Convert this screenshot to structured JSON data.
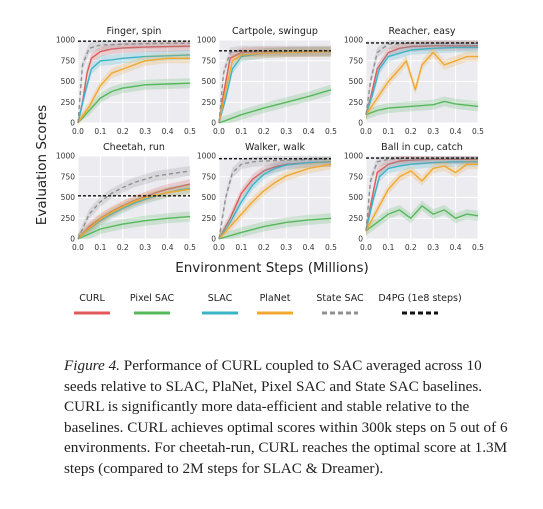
{
  "chart_data": [
    {
      "type": "line",
      "title": "Finger, spin",
      "x_ticks": [
        "0.0",
        "0.1",
        "0.2",
        "0.3",
        "0.4",
        "0.5"
      ],
      "y_ticks": [
        "0",
        "250",
        "500",
        "750",
        "1000"
      ],
      "xlim": [
        0,
        0.5
      ],
      "ylim": [
        0,
        1000
      ],
      "series": [
        {
          "name": "CURL",
          "color": "#e05a5a",
          "x": [
            0,
            0.02,
            0.04,
            0.06,
            0.1,
            0.15,
            0.2,
            0.3,
            0.4,
            0.5
          ],
          "y": [
            0,
            250,
            600,
            780,
            860,
            890,
            905,
            915,
            920,
            925
          ]
        },
        {
          "name": "Pixel SAC",
          "color": "#55b85a",
          "x": [
            0,
            0.05,
            0.1,
            0.15,
            0.2,
            0.3,
            0.4,
            0.5
          ],
          "y": [
            0,
            150,
            300,
            380,
            420,
            460,
            470,
            480
          ]
        },
        {
          "name": "SLAC",
          "color": "#3cb4c8",
          "x": [
            0,
            0.03,
            0.06,
            0.1,
            0.15,
            0.2,
            0.3,
            0.4,
            0.5
          ],
          "y": [
            0,
            350,
            650,
            750,
            760,
            780,
            800,
            810,
            820
          ]
        },
        {
          "name": "PlaNet",
          "color": "#f0a830",
          "x": [
            0,
            0.05,
            0.1,
            0.15,
            0.2,
            0.25,
            0.3,
            0.4,
            0.5
          ],
          "y": [
            0,
            200,
            450,
            600,
            650,
            700,
            750,
            780,
            780
          ]
        },
        {
          "name": "State SAC",
          "color": "#909090",
          "x": [
            0,
            0.02,
            0.05,
            0.1,
            0.2,
            0.3,
            0.4,
            0.5
          ],
          "y": [
            0,
            700,
            900,
            940,
            950,
            955,
            960,
            960
          ]
        },
        {
          "name": "D4PG (1e8 steps)",
          "color": "#111111",
          "x": [
            0,
            0.5
          ],
          "y": [
            985,
            985
          ]
        }
      ]
    },
    {
      "type": "line",
      "title": "Cartpole, swingup",
      "x_ticks": [
        "0.0",
        "0.1",
        "0.2",
        "0.3",
        "0.4",
        "0.5"
      ],
      "y_ticks": [
        "0",
        "250",
        "500",
        "750",
        "1000"
      ],
      "xlim": [
        0,
        0.5
      ],
      "ylim": [
        0,
        1000
      ],
      "series": [
        {
          "name": "CURL",
          "color": "#e05a5a",
          "x": [
            0,
            0.02,
            0.05,
            0.1,
            0.15,
            0.2,
            0.3,
            0.4,
            0.5
          ],
          "y": [
            0,
            350,
            780,
            850,
            855,
            860,
            860,
            860,
            860
          ]
        },
        {
          "name": "Pixel SAC",
          "color": "#55b85a",
          "x": [
            0,
            0.05,
            0.1,
            0.2,
            0.3,
            0.4,
            0.5
          ],
          "y": [
            0,
            50,
            100,
            180,
            250,
            320,
            400
          ]
        },
        {
          "name": "SLAC",
          "color": "#3cb4c8",
          "x": [
            0,
            0.03,
            0.06,
            0.1,
            0.2,
            0.3,
            0.4,
            0.5
          ],
          "y": [
            0,
            300,
            650,
            800,
            840,
            855,
            860,
            860
          ]
        },
        {
          "name": "PlaNet",
          "color": "#f0a830",
          "x": [
            0,
            0.03,
            0.06,
            0.1,
            0.2,
            0.3,
            0.4,
            0.5
          ],
          "y": [
            0,
            400,
            750,
            820,
            840,
            850,
            855,
            860
          ]
        },
        {
          "name": "State SAC",
          "color": "#909090",
          "x": [
            0,
            0.02,
            0.05,
            0.1,
            0.2,
            0.3,
            0.4,
            0.5
          ],
          "y": [
            0,
            600,
            850,
            870,
            870,
            870,
            870,
            870
          ]
        },
        {
          "name": "D4PG (1e8 steps)",
          "color": "#111111",
          "x": [
            0,
            0.5
          ],
          "y": [
            870,
            870
          ]
        }
      ]
    },
    {
      "type": "line",
      "title": "Reacher, easy",
      "x_ticks": [
        "0.0",
        "0.1",
        "0.2",
        "0.3",
        "0.4",
        "0.5"
      ],
      "y_ticks": [
        "0",
        "250",
        "500",
        "750",
        "1000"
      ],
      "xlim": [
        0,
        0.5
      ],
      "ylim": [
        0,
        1000
      ],
      "series": [
        {
          "name": "CURL",
          "color": "#e05a5a",
          "x": [
            0,
            0.02,
            0.05,
            0.1,
            0.15,
            0.2,
            0.3,
            0.4,
            0.5
          ],
          "y": [
            100,
            300,
            650,
            850,
            900,
            920,
            930,
            930,
            930
          ]
        },
        {
          "name": "Pixel SAC",
          "color": "#55b85a",
          "x": [
            0,
            0.05,
            0.1,
            0.2,
            0.3,
            0.35,
            0.4,
            0.5
          ],
          "y": [
            100,
            150,
            180,
            200,
            220,
            260,
            230,
            200
          ]
        },
        {
          "name": "SLAC",
          "color": "#3cb4c8",
          "x": [
            0,
            0.03,
            0.06,
            0.1,
            0.2,
            0.3,
            0.4,
            0.5
          ],
          "y": [
            100,
            350,
            650,
            800,
            880,
            900,
            910,
            910
          ]
        },
        {
          "name": "PlaNet",
          "color": "#f0a830",
          "x": [
            0,
            0.05,
            0.1,
            0.15,
            0.18,
            0.22,
            0.25,
            0.3,
            0.35,
            0.4,
            0.45,
            0.5
          ],
          "y": [
            100,
            300,
            500,
            650,
            750,
            400,
            700,
            850,
            700,
            750,
            800,
            800
          ]
        },
        {
          "name": "State SAC",
          "color": "#909090",
          "x": [
            0,
            0.02,
            0.05,
            0.1,
            0.2,
            0.3,
            0.4,
            0.5
          ],
          "y": [
            100,
            500,
            850,
            950,
            960,
            960,
            960,
            960
          ]
        },
        {
          "name": "D4PG (1e8 steps)",
          "color": "#111111",
          "x": [
            0,
            0.5
          ],
          "y": [
            965,
            965
          ]
        }
      ]
    },
    {
      "type": "line",
      "title": "Cheetah, run",
      "x_ticks": [
        "0.0",
        "0.1",
        "0.2",
        "0.3",
        "0.4",
        "0.5"
      ],
      "y_ticks": [
        "0",
        "250",
        "500",
        "750",
        "1000"
      ],
      "xlim": [
        0,
        0.5
      ],
      "ylim": [
        0,
        1000
      ],
      "series": [
        {
          "name": "CURL",
          "color": "#e05a5a",
          "x": [
            0,
            0.05,
            0.1,
            0.15,
            0.2,
            0.25,
            0.3,
            0.35,
            0.4,
            0.45,
            0.5
          ],
          "y": [
            0,
            150,
            250,
            330,
            400,
            460,
            510,
            560,
            600,
            630,
            660
          ]
        },
        {
          "name": "Pixel SAC",
          "color": "#55b85a",
          "x": [
            0,
            0.05,
            0.1,
            0.2,
            0.3,
            0.4,
            0.5
          ],
          "y": [
            0,
            60,
            120,
            180,
            220,
            250,
            270
          ]
        },
        {
          "name": "SLAC",
          "color": "#3cb4c8",
          "x": [
            0,
            0.05,
            0.1,
            0.15,
            0.2,
            0.25,
            0.3,
            0.35,
            0.4,
            0.45,
            0.5
          ],
          "y": [
            0,
            120,
            220,
            300,
            370,
            430,
            480,
            520,
            560,
            590,
            610
          ]
        },
        {
          "name": "PlaNet",
          "color": "#f0a830",
          "x": [
            0,
            0.05,
            0.1,
            0.15,
            0.2,
            0.25,
            0.3,
            0.35,
            0.4,
            0.45,
            0.5
          ],
          "y": [
            0,
            130,
            240,
            320,
            390,
            450,
            500,
            530,
            560,
            580,
            600
          ]
        },
        {
          "name": "State SAC",
          "color": "#909090",
          "x": [
            0,
            0.05,
            0.1,
            0.15,
            0.2,
            0.25,
            0.3,
            0.35,
            0.4,
            0.45,
            0.5
          ],
          "y": [
            0,
            300,
            450,
            550,
            620,
            680,
            720,
            760,
            780,
            800,
            820
          ]
        },
        {
          "name": "D4PG (1e8 steps)",
          "color": "#111111",
          "x": [
            0,
            0.5
          ],
          "y": [
            520,
            520
          ]
        }
      ]
    },
    {
      "type": "line",
      "title": "Walker, walk",
      "x_ticks": [
        "0.0",
        "0.1",
        "0.2",
        "0.3",
        "0.4",
        "0.5"
      ],
      "y_ticks": [
        "0",
        "250",
        "500",
        "750",
        "1000"
      ],
      "xlim": [
        0,
        0.5
      ],
      "ylim": [
        0,
        1000
      ],
      "series": [
        {
          "name": "CURL",
          "color": "#e05a5a",
          "x": [
            0,
            0.05,
            0.1,
            0.15,
            0.2,
            0.25,
            0.3,
            0.4,
            0.5
          ],
          "y": [
            0,
            250,
            550,
            720,
            820,
            870,
            900,
            920,
            930
          ]
        },
        {
          "name": "Pixel SAC",
          "color": "#55b85a",
          "x": [
            0,
            0.05,
            0.1,
            0.2,
            0.3,
            0.4,
            0.5
          ],
          "y": [
            0,
            40,
            80,
            150,
            200,
            230,
            250
          ]
        },
        {
          "name": "SLAC",
          "color": "#3cb4c8",
          "x": [
            0,
            0.05,
            0.1,
            0.15,
            0.2,
            0.25,
            0.3,
            0.4,
            0.5
          ],
          "y": [
            0,
            200,
            450,
            650,
            780,
            850,
            890,
            920,
            930
          ]
        },
        {
          "name": "PlaNet",
          "color": "#f0a830",
          "x": [
            0,
            0.05,
            0.1,
            0.15,
            0.2,
            0.25,
            0.3,
            0.4,
            0.5
          ],
          "y": [
            0,
            150,
            300,
            450,
            580,
            680,
            760,
            850,
            900
          ]
        },
        {
          "name": "State SAC",
          "color": "#909090",
          "x": [
            0,
            0.03,
            0.06,
            0.1,
            0.15,
            0.2,
            0.3,
            0.4,
            0.5
          ],
          "y": [
            0,
            500,
            800,
            900,
            930,
            940,
            950,
            955,
            960
          ]
        },
        {
          "name": "D4PG (1e8 steps)",
          "color": "#111111",
          "x": [
            0,
            0.5
          ],
          "y": [
            968,
            968
          ]
        }
      ]
    },
    {
      "type": "line",
      "title": "Ball in cup, catch",
      "x_ticks": [
        "0.0",
        "0.1",
        "0.2",
        "0.3",
        "0.4",
        "0.5"
      ],
      "y_ticks": [
        "0",
        "250",
        "500",
        "750",
        "1000"
      ],
      "xlim": [
        0,
        0.5
      ],
      "ylim": [
        0,
        1000
      ],
      "series": [
        {
          "name": "CURL",
          "color": "#e05a5a",
          "x": [
            0,
            0.02,
            0.05,
            0.1,
            0.15,
            0.2,
            0.3,
            0.4,
            0.5
          ],
          "y": [
            100,
            400,
            800,
            900,
            940,
            950,
            960,
            960,
            960
          ]
        },
        {
          "name": "Pixel SAC",
          "color": "#55b85a",
          "x": [
            0,
            0.05,
            0.1,
            0.15,
            0.2,
            0.25,
            0.3,
            0.35,
            0.4,
            0.45,
            0.5
          ],
          "y": [
            100,
            200,
            300,
            350,
            250,
            400,
            300,
            350,
            250,
            300,
            280
          ]
        },
        {
          "name": "SLAC",
          "color": "#3cb4c8",
          "x": [
            0,
            0.03,
            0.06,
            0.1,
            0.15,
            0.2,
            0.3,
            0.4,
            0.5
          ],
          "y": [
            100,
            450,
            750,
            850,
            880,
            900,
            920,
            930,
            930
          ]
        },
        {
          "name": "PlaNet",
          "color": "#f0a830",
          "x": [
            0,
            0.05,
            0.1,
            0.15,
            0.2,
            0.25,
            0.3,
            0.35,
            0.4,
            0.45,
            0.5
          ],
          "y": [
            100,
            350,
            600,
            750,
            820,
            700,
            850,
            880,
            800,
            900,
            900
          ]
        },
        {
          "name": "State SAC",
          "color": "#909090",
          "x": [
            0,
            0.02,
            0.05,
            0.1,
            0.2,
            0.3,
            0.4,
            0.5
          ],
          "y": [
            100,
            700,
            930,
            960,
            970,
            970,
            970,
            970
          ]
        },
        {
          "name": "D4PG (1e8 steps)",
          "color": "#111111",
          "x": [
            0,
            0.5
          ],
          "y": [
            975,
            975
          ]
        }
      ]
    }
  ],
  "figure": {
    "ylabel": "Evaluation Scores",
    "xlabel": "Environment Steps (Millions)",
    "legend_position": "bottom",
    "legend": [
      {
        "label": "CURL",
        "color": "#e05a5a",
        "style": "solid"
      },
      {
        "label": "Pixel SAC",
        "color": "#55b85a",
        "style": "solid"
      },
      {
        "label": "SLAC",
        "color": "#3cb4c8",
        "style": "solid"
      },
      {
        "label": "PlaNet",
        "color": "#f0a830",
        "style": "solid"
      },
      {
        "label": "State SAC",
        "color": "#909090",
        "style": "dashed"
      },
      {
        "label": "D4PG (1e8 steps)",
        "color": "#111111",
        "style": "dashed"
      }
    ]
  },
  "caption": {
    "lead": "Figure 4.",
    "body": "Performance of CURL coupled to SAC averaged across 10 seeds relative to SLAC, PlaNet, Pixel SAC and State SAC baselines. CURL is significantly more data-efficient and stable relative to the baselines. CURL achieves optimal scores within 300k steps on 5 out of 6 environments. For cheetah-run, CURL reaches the optimal score at 1.3M steps (compared to 2M steps for SLAC & Dreamer)."
  }
}
